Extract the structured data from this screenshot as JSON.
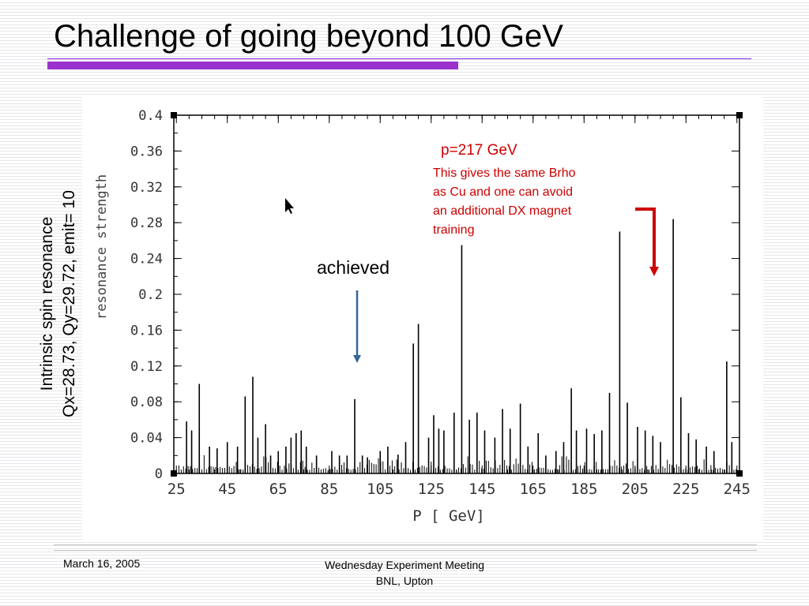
{
  "slide": {
    "title": "Challenge of going beyond 100 GeV",
    "side_caption_line1": "Intrinsic spin resonance",
    "side_caption_line2": "Qx=28.73, Qy=29.72, emit= 10",
    "achieved_label": "achieved",
    "annotation_title": "p=217 GeV",
    "annotation_lines": [
      "This gives the same Brho",
      "as Cu and one can avoid",
      "an additional DX magnet",
      "training"
    ],
    "footer_date": "March 16, 2005",
    "footer_center_line1": "Wednesday Experiment Meeting",
    "footer_center_line2": "BNL, Upton"
  },
  "colors": {
    "title_rule": "#9933cc",
    "annotation_red": "#cc0000",
    "achieved_arrow": "#336699"
  },
  "chart_data": {
    "type": "bar",
    "xlabel": "P [ GeV]",
    "ylabel": "resonance strength",
    "xlim": [
      24,
      246
    ],
    "ylim": [
      0,
      0.4
    ],
    "x_ticks": [
      25,
      45,
      65,
      85,
      105,
      125,
      145,
      165,
      185,
      205,
      225,
      245
    ],
    "y_ticks": [
      0,
      0.04,
      0.08,
      0.12,
      0.16,
      0.2,
      0.24,
      0.28,
      0.32,
      0.36,
      0.4
    ],
    "y_tick_labels": [
      "0",
      "0.04",
      "0.08",
      "0.12",
      "0.16",
      "0.2",
      "0.24",
      "0.28",
      "0.32",
      "0.36",
      "0.4"
    ],
    "grid": false,
    "x": [
      29,
      31,
      34,
      38,
      41,
      45,
      49,
      52,
      55,
      57,
      60,
      62,
      65,
      68,
      70,
      72,
      74,
      76,
      80,
      86,
      89,
      92,
      95,
      98,
      100,
      105,
      108,
      112,
      115,
      118,
      120,
      124,
      126,
      128,
      130,
      134,
      137,
      140,
      143,
      146,
      150,
      153,
      156,
      160,
      163,
      167,
      170,
      174,
      177,
      180,
      182,
      186,
      189,
      192,
      195,
      199,
      202,
      206,
      209,
      212,
      215,
      220,
      223,
      226,
      229,
      233,
      236,
      241,
      243
    ],
    "values": [
      0.058,
      0.048,
      0.1,
      0.03,
      0.028,
      0.035,
      0.03,
      0.086,
      0.108,
      0.04,
      0.055,
      0.02,
      0.025,
      0.03,
      0.04,
      0.045,
      0.048,
      0.03,
      0.02,
      0.025,
      0.02,
      0.02,
      0.083,
      0.02,
      0.018,
      0.025,
      0.03,
      0.021,
      0.035,
      0.145,
      0.167,
      0.04,
      0.065,
      0.05,
      0.048,
      0.068,
      0.255,
      0.06,
      0.068,
      0.048,
      0.04,
      0.072,
      0.05,
      0.078,
      0.03,
      0.045,
      0.02,
      0.025,
      0.035,
      0.095,
      0.048,
      0.05,
      0.044,
      0.048,
      0.09,
      0.27,
      0.079,
      0.052,
      0.048,
      0.042,
      0.035,
      0.284,
      0.085,
      0.045,
      0.038,
      0.03,
      0.025,
      0.125,
      0.035
    ]
  }
}
